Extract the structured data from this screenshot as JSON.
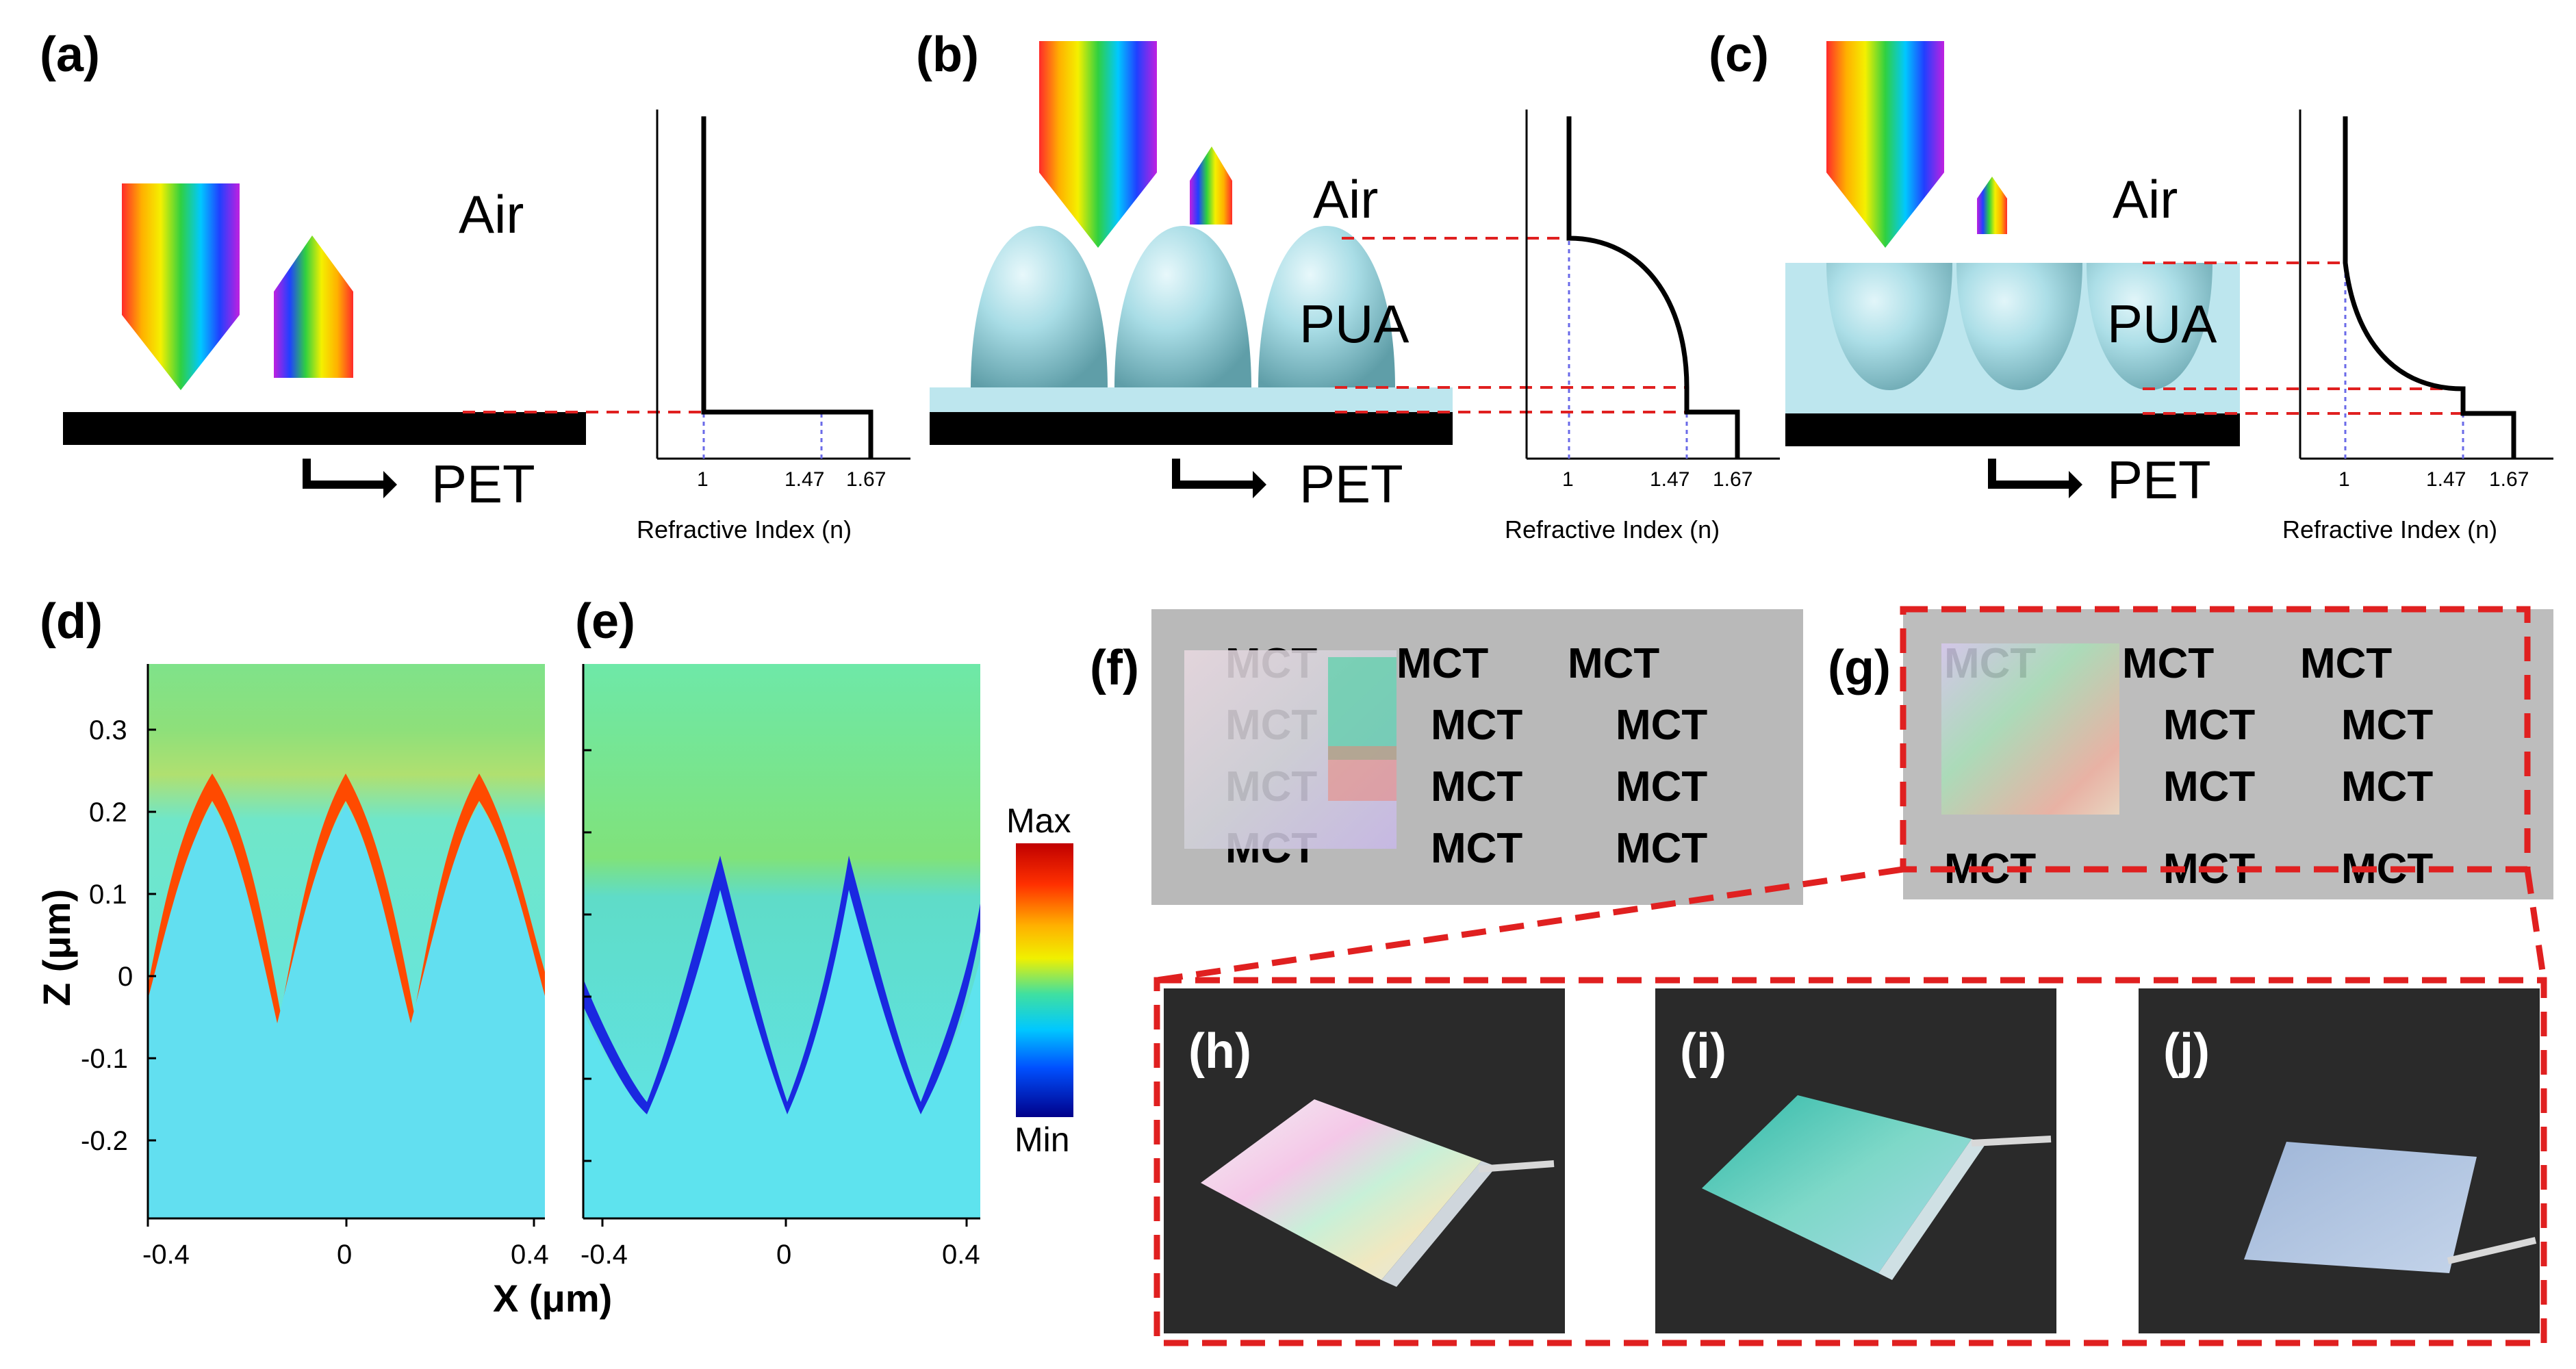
{
  "panel_labels": {
    "a": "(a)",
    "b": "(b)",
    "c": "(c)",
    "d": "(d)",
    "e": "(e)",
    "f": "(f)",
    "g": "(g)",
    "h": "(h)",
    "i": "(i)",
    "j": "(j)"
  },
  "schematic": {
    "air_label": "Air",
    "pua_label": "PUA",
    "pet_label": "PET",
    "refractive_axis_label": "Refractive Index (n)",
    "refractive_ticks": [
      "1",
      "1.47",
      "1.67"
    ]
  },
  "simulation": {
    "z_label": "Z (μm)",
    "x_label": "X (μm)",
    "z_ticks": [
      "0.3",
      "0.2",
      "0.1",
      "0",
      "-0.1",
      "-0.2"
    ],
    "x_ticks": [
      "-0.4",
      "0",
      "0.4"
    ],
    "colorbar_max": "Max",
    "colorbar_min": "Min"
  },
  "photos": {
    "sheet_text": "MCT"
  },
  "colors": {
    "lens": "#a9dde6",
    "layer": "#bde6ee",
    "substrate": "#000000",
    "guide": "#e02020",
    "field_bg": "#66e8ea",
    "photo_bg": "#2a2a2a"
  }
}
